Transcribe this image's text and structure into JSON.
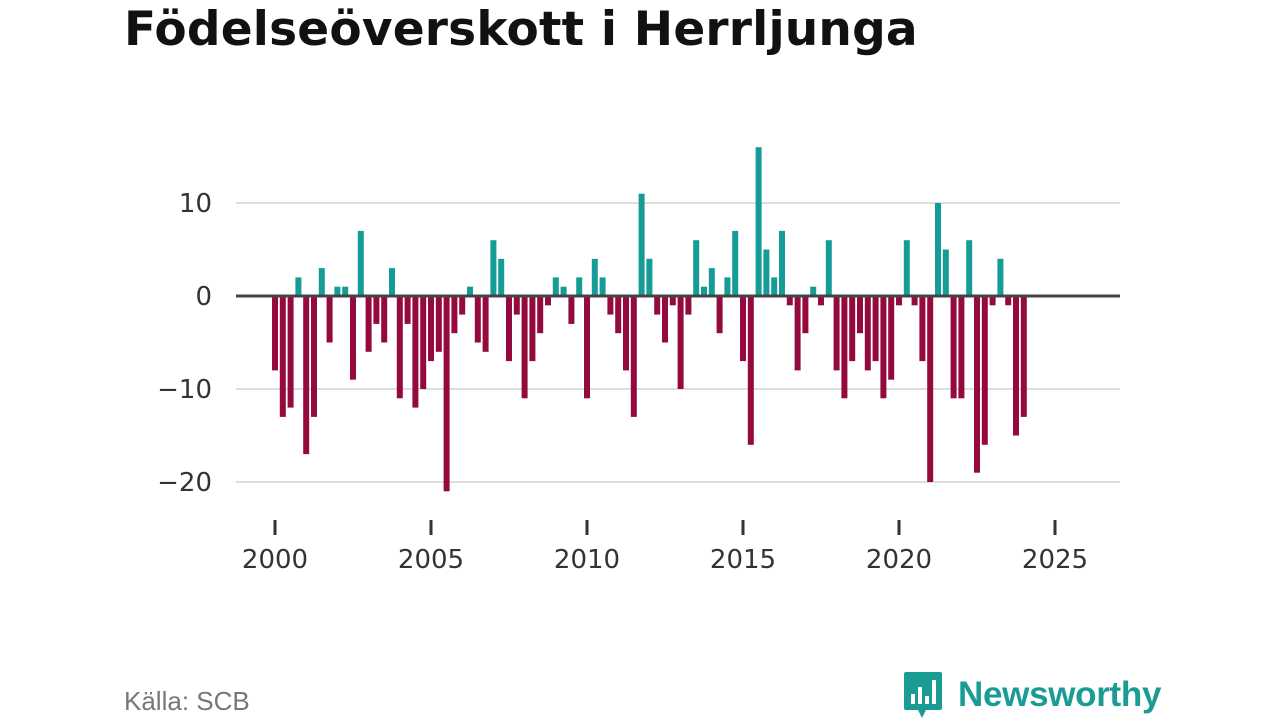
{
  "title": "Födelseöverskott i Herrljunga",
  "source": "Källa: SCB",
  "brand": {
    "name": "Newsworthy",
    "icon": "newsworthy-logo-icon"
  },
  "colors": {
    "positive": "#159c96",
    "negative": "#950a3e",
    "grid": "#dedede",
    "zero_line": "#444444",
    "brand": "#1a9c95"
  },
  "chart_data": {
    "type": "bar",
    "title": "Födelseöverskott i Herrljunga",
    "xlabel": "",
    "ylabel": "",
    "ylim": [
      -22,
      18
    ],
    "yticks": [
      10,
      0,
      -10,
      -20
    ],
    "ytick_labels": [
      "10",
      "0",
      "−10",
      "−20"
    ],
    "xticks": [
      2000,
      2005,
      2010,
      2015,
      2020,
      2025
    ],
    "xtick_labels": [
      "2000",
      "2005",
      "2010",
      "2015",
      "2020",
      "2025"
    ],
    "x_start": 2000.0,
    "x_step": 0.25,
    "grid": true,
    "values": [
      -8,
      -13,
      -12,
      2,
      -17,
      -13,
      3,
      -5,
      1,
      1,
      -9,
      7,
      -6,
      -3,
      -5,
      3,
      -11,
      -3,
      -12,
      -10,
      -7,
      -6,
      -21,
      -4,
      -2,
      1,
      -5,
      -6,
      6,
      4,
      -7,
      -2,
      -11,
      -7,
      -4,
      -1,
      2,
      1,
      -3,
      2,
      -11,
      4,
      2,
      -2,
      -4,
      -8,
      -13,
      11,
      4,
      -2,
      -5,
      -1,
      -10,
      -2,
      6,
      1,
      3,
      -4,
      2,
      7,
      -7,
      -16,
      16,
      5,
      2,
      7,
      -1,
      -8,
      -4,
      1,
      -1,
      6,
      -8,
      -11,
      -7,
      -4,
      -8,
      -7,
      -11,
      -9,
      -1,
      6,
      -1,
      -7,
      -20,
      10,
      5,
      -11,
      -11,
      6,
      -19,
      -16,
      -1,
      4,
      -1,
      -15,
      -13
    ]
  }
}
